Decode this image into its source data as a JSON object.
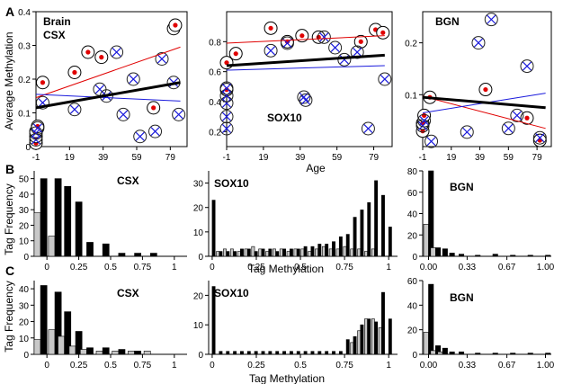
{
  "figure": {
    "panel_labels": [
      "A",
      "B",
      "C"
    ],
    "row_a_ylabel": "Average Methylation",
    "row_a_xlabel": "Age",
    "row_b_ylabel": "Tag Frequency",
    "row_b_xlabel": "Tag Methylation",
    "row_c_ylabel": "Tag Frequency",
    "row_c_xlabel": "Tag Methylation"
  },
  "chart_data": [
    {
      "id": "A1",
      "type": "scatter",
      "title": "Brain\nCSX",
      "xlim": [
        -1,
        89
      ],
      "ylim": [
        0,
        0.4
      ],
      "xticks": [
        -1,
        19,
        39,
        59,
        79
      ],
      "yticks": [
        0,
        0.1,
        0.2,
        0.3,
        0.4
      ],
      "yticklabels": [
        "0",
        "0.1",
        "0.2",
        "0.3",
        "0.4"
      ],
      "series": [
        {
          "marker": "red-dot",
          "points": [
            [
              -1,
              0.01
            ],
            [
              -1,
              0.03
            ],
            [
              -1,
              0.045
            ],
            [
              0,
              0.06
            ],
            [
              3,
              0.19
            ],
            [
              22,
              0.22
            ],
            [
              30,
              0.28
            ],
            [
              38,
              0.265
            ],
            [
              69,
              0.115
            ],
            [
              81,
              0.35
            ],
            [
              82,
              0.36
            ]
          ]
        },
        {
          "marker": "x-circle",
          "points": [
            [
              -1,
              0.02
            ],
            [
              -1,
              0.04
            ],
            [
              0,
              0.055
            ],
            [
              3,
              0.13
            ],
            [
              22,
              0.11
            ],
            [
              37,
              0.17
            ],
            [
              41,
              0.15
            ],
            [
              47,
              0.28
            ],
            [
              51,
              0.095
            ],
            [
              57,
              0.2
            ],
            [
              61,
              0.03
            ],
            [
              70,
              0.045
            ],
            [
              74,
              0.26
            ],
            [
              81,
              0.19
            ],
            [
              84,
              0.095
            ]
          ]
        }
      ],
      "fits": [
        {
          "color": "#e00000",
          "width": 1,
          "from": [
            -1,
            0.145
          ],
          "to": [
            85,
            0.295
          ]
        },
        {
          "color": "#1a1adc",
          "width": 1,
          "from": [
            -1,
            0.155
          ],
          "to": [
            85,
            0.135
          ]
        },
        {
          "color": "#000000",
          "width": 3,
          "from": [
            -1,
            0.115
          ],
          "to": [
            85,
            0.19
          ]
        }
      ]
    },
    {
      "id": "A2",
      "type": "scatter",
      "title": "SOX10",
      "xlim": [
        -1,
        89
      ],
      "ylim": [
        0.1,
        1.0
      ],
      "xticks": [
        -1,
        19,
        39,
        59,
        79
      ],
      "yticks": [
        0.2,
        0.4,
        0.6,
        0.8
      ],
      "yticklabels": [
        "0.2",
        "0.4",
        "0.6",
        "0.8"
      ],
      "series": [
        {
          "marker": "red-dot",
          "points": [
            [
              -1,
              0.48
            ],
            [
              -1,
              0.66
            ],
            [
              4,
              0.72
            ],
            [
              23,
              0.89
            ],
            [
              32,
              0.8
            ],
            [
              40,
              0.84
            ],
            [
              49,
              0.83
            ],
            [
              72,
              0.8
            ],
            [
              80,
              0.88
            ],
            [
              84,
              0.86
            ]
          ]
        },
        {
          "marker": "x-circle",
          "points": [
            [
              -1,
              0.22
            ],
            [
              -1,
              0.3
            ],
            [
              -1,
              0.39
            ],
            [
              -1,
              0.44
            ],
            [
              -1,
              0.49
            ],
            [
              23,
              0.74
            ],
            [
              32,
              0.79
            ],
            [
              41,
              0.43
            ],
            [
              42,
              0.41
            ],
            [
              52,
              0.83
            ],
            [
              58,
              0.76
            ],
            [
              63,
              0.68
            ],
            [
              70,
              0.73
            ],
            [
              76,
              0.22
            ],
            [
              85,
              0.55
            ]
          ]
        }
      ],
      "fits": [
        {
          "color": "#e00000",
          "width": 1,
          "from": [
            -1,
            0.79
          ],
          "to": [
            85,
            0.84
          ]
        },
        {
          "color": "#1a1adc",
          "width": 1,
          "from": [
            -1,
            0.61
          ],
          "to": [
            85,
            0.64
          ]
        },
        {
          "color": "#000000",
          "width": 3,
          "from": [
            -1,
            0.64
          ],
          "to": [
            85,
            0.71
          ]
        }
      ]
    },
    {
      "id": "A3",
      "type": "scatter",
      "title": "BGN",
      "xlim": [
        -1,
        89
      ],
      "ylim": [
        0,
        0.26
      ],
      "xticks": [
        -1,
        19,
        39,
        59,
        79
      ],
      "yticks": [
        0.1,
        0.2
      ],
      "yticklabels": [
        "0.1",
        "0.2"
      ],
      "series": [
        {
          "marker": "red-dot",
          "points": [
            [
              -1,
              0.03
            ],
            [
              -1,
              0.045
            ],
            [
              0,
              0.06
            ],
            [
              4,
              0.095
            ],
            [
              43,
              0.11
            ],
            [
              72,
              0.055
            ],
            [
              81,
              0.012
            ]
          ]
        },
        {
          "marker": "x-circle",
          "points": [
            [
              -1,
              0.04
            ],
            [
              0,
              0.05
            ],
            [
              5,
              0.01
            ],
            [
              30,
              0.028
            ],
            [
              38,
              0.2
            ],
            [
              47,
              0.245
            ],
            [
              59,
              0.035
            ],
            [
              65,
              0.06
            ],
            [
              72,
              0.155
            ],
            [
              81,
              0.017
            ]
          ]
        }
      ],
      "fits": [
        {
          "color": "#e00000",
          "width": 1,
          "from": [
            -1,
            0.097
          ],
          "to": [
            85,
            0.035
          ]
        },
        {
          "color": "#1a1adc",
          "width": 1,
          "from": [
            -1,
            0.065
          ],
          "to": [
            85,
            0.103
          ]
        },
        {
          "color": "#000000",
          "width": 3,
          "from": [
            -1,
            0.095
          ],
          "to": [
            85,
            0.075
          ]
        }
      ]
    },
    {
      "id": "B1",
      "type": "bar",
      "title": "CSX",
      "xlim": [
        -0.1,
        1.1
      ],
      "ylim": [
        0,
        55
      ],
      "xticks": [
        0,
        0.25,
        0.5,
        0.75,
        1
      ],
      "xticklabels": [
        "0",
        "0.25",
        "0.5",
        "0.75",
        "1"
      ],
      "yticks": [
        0,
        10,
        20,
        30,
        40,
        50
      ],
      "yticklabels": [
        "0",
        "10",
        "20",
        "30",
        "40",
        "50"
      ],
      "x": [
        -0.05,
        0.0625,
        0.1375,
        0.225,
        0.3125,
        0.4375,
        0.5625,
        0.6875,
        0.8125
      ],
      "series": [
        {
          "name": "",
          "color": "#c8c8c8",
          "values": [
            28,
            13,
            0,
            0,
            0,
            0,
            0,
            0,
            0
          ]
        },
        {
          "name": "",
          "color": "#000000",
          "values": [
            50,
            50,
            45,
            35,
            9,
            8,
            2,
            2,
            2
          ]
        }
      ]
    },
    {
      "id": "B2",
      "type": "bar",
      "title": "SOX10",
      "xlim": [
        -0.02,
        1.05
      ],
      "ylim": [
        0,
        35
      ],
      "xticks": [
        0,
        0.25,
        0.5,
        0.75,
        1
      ],
      "xticklabels": [
        "0",
        "0.25",
        "0.5",
        "0.75",
        "1"
      ],
      "yticks": [
        0,
        10,
        20,
        30
      ],
      "yticklabels": [
        "0",
        "10",
        "20",
        "30"
      ],
      "x": [
        0.0,
        0.04,
        0.08,
        0.12,
        0.16,
        0.2,
        0.24,
        0.28,
        0.32,
        0.36,
        0.4,
        0.44,
        0.48,
        0.52,
        0.56,
        0.6,
        0.64,
        0.68,
        0.72,
        0.76,
        0.8,
        0.84,
        0.88,
        0.92,
        0.96,
        1.0
      ],
      "series": [
        {
          "name": "",
          "color": "#c8c8c8",
          "values": [
            0,
            2,
            3,
            3,
            2,
            3,
            4,
            3,
            2,
            3,
            3,
            2,
            3,
            3,
            2,
            3,
            4,
            3,
            3,
            4,
            3,
            3,
            2,
            3,
            0,
            0
          ]
        },
        {
          "name": "",
          "color": "#000000",
          "values": [
            23,
            2,
            2,
            2,
            3,
            3,
            2,
            3,
            3,
            2,
            3,
            3,
            3,
            4,
            4,
            5,
            5,
            6,
            8,
            9,
            16,
            19,
            22,
            31,
            25,
            12
          ]
        }
      ]
    },
    {
      "id": "B3",
      "type": "bar",
      "title": "BGN",
      "xlim": [
        -0.05,
        1.05
      ],
      "ylim": [
        0,
        80
      ],
      "xticks": [
        0,
        0.33,
        0.67,
        1
      ],
      "xticklabels": [
        "0.00",
        "0.33",
        "0.67",
        "1.00"
      ],
      "yticks": [
        0,
        20,
        40,
        60,
        80
      ],
      "yticklabels": [
        "0",
        "20",
        "40",
        "60",
        "80"
      ],
      "x": [
        0.0,
        0.06,
        0.12,
        0.18,
        0.26,
        0.4,
        0.55,
        0.7,
        0.85,
        1.0
      ],
      "series": [
        {
          "name": "",
          "color": "#c8c8c8",
          "values": [
            30,
            8,
            0,
            0,
            0,
            0,
            0,
            0,
            0,
            0
          ]
        },
        {
          "name": "",
          "color": "#000000",
          "values": [
            80,
            8,
            7,
            3,
            2,
            1,
            2,
            1,
            1,
            1
          ]
        }
      ]
    },
    {
      "id": "C1",
      "type": "bar",
      "title": "CSX",
      "xlim": [
        -0.1,
        1.1
      ],
      "ylim": [
        0,
        45
      ],
      "xticks": [
        0,
        0.25,
        0.5,
        0.75,
        1
      ],
      "xticklabels": [
        "0",
        "0.25",
        "0.5",
        "0.75",
        "1"
      ],
      "yticks": [
        0,
        10,
        20,
        30,
        40
      ],
      "yticklabels": [
        "0",
        "10",
        "20",
        "30",
        "40"
      ],
      "x": [
        -0.05,
        0.0625,
        0.1375,
        0.225,
        0.3125,
        0.4375,
        0.5625,
        0.6875,
        0.8125
      ],
      "series": [
        {
          "name": "",
          "color": "#c8c8c8",
          "values": [
            9,
            15,
            11,
            5,
            3,
            2,
            2,
            2,
            2
          ]
        },
        {
          "name": "",
          "color": "#000000",
          "values": [
            42,
            38,
            26,
            14,
            4,
            4,
            3,
            2,
            0
          ]
        }
      ]
    },
    {
      "id": "C2",
      "type": "bar",
      "title": "SOX10",
      "xlim": [
        -0.02,
        1.05
      ],
      "ylim": [
        0,
        25
      ],
      "xticks": [
        0,
        0.25,
        0.5,
        0.75,
        1
      ],
      "xticklabels": [
        "0",
        "0.25",
        "0.5",
        "0.75",
        "1"
      ],
      "yticks": [
        0,
        10,
        20
      ],
      "yticklabels": [
        "0",
        "10",
        "20"
      ],
      "x": [
        0.0,
        0.04,
        0.08,
        0.12,
        0.16,
        0.2,
        0.24,
        0.28,
        0.32,
        0.36,
        0.4,
        0.44,
        0.48,
        0.52,
        0.56,
        0.6,
        0.64,
        0.68,
        0.72,
        0.76,
        0.8,
        0.84,
        0.88,
        0.92,
        0.96,
        1.0
      ],
      "series": [
        {
          "name": "",
          "color": "#c8c8c8",
          "values": [
            0,
            0,
            0,
            0,
            0,
            0,
            0,
            0,
            0,
            0,
            0,
            0,
            0,
            0,
            0,
            0,
            0,
            0,
            0,
            0,
            4,
            8,
            12,
            12,
            9,
            0
          ]
        },
        {
          "name": "",
          "color": "#000000",
          "values": [
            23,
            1,
            1,
            1,
            1,
            1,
            1,
            1,
            1,
            1,
            1,
            1,
            1,
            1,
            1,
            1,
            1,
            1,
            1,
            5,
            6,
            10,
            12,
            11,
            21,
            12
          ]
        }
      ]
    },
    {
      "id": "C3",
      "type": "bar",
      "title": "BGN",
      "xlim": [
        -0.05,
        1.05
      ],
      "ylim": [
        0,
        60
      ],
      "xticks": [
        0,
        0.33,
        0.67,
        1
      ],
      "xticklabels": [
        "0.00",
        "0.33",
        "0.67",
        "1.00"
      ],
      "yticks": [
        0,
        20,
        40,
        60
      ],
      "yticklabels": [
        "0",
        "20",
        "40",
        "60"
      ],
      "x": [
        0.0,
        0.06,
        0.12,
        0.18,
        0.26,
        0.4,
        0.55,
        0.7,
        0.85,
        1.0
      ],
      "series": [
        {
          "name": "",
          "color": "#c8c8c8",
          "values": [
            18,
            3,
            2,
            0,
            0,
            0,
            0,
            0,
            0,
            0
          ]
        },
        {
          "name": "",
          "color": "#000000",
          "values": [
            57,
            7,
            5,
            2,
            2,
            1,
            1,
            1,
            1,
            1
          ]
        }
      ]
    }
  ]
}
